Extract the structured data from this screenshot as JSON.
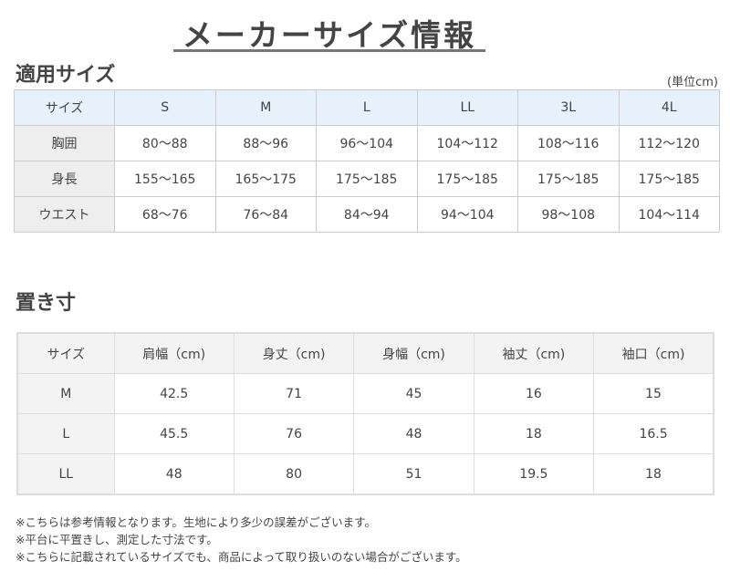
{
  "title": "メーカーサイズ情報",
  "size_section": {
    "heading": "適用サイズ",
    "unit": "(単位cm)",
    "header": [
      "サイズ",
      "S",
      "M",
      "L",
      "LL",
      "3L",
      "4L"
    ],
    "rows": [
      [
        "胸囲",
        "80〜88",
        "88〜96",
        "96〜104",
        "104〜112",
        "108〜116",
        "112〜120"
      ],
      [
        "身長",
        "155〜165",
        "165〜175",
        "175〜185",
        "175〜185",
        "175〜185",
        "175〜185"
      ],
      [
        "ウエスト",
        "68〜76",
        "76〜84",
        "84〜94",
        "94〜104",
        "98〜108",
        "104〜114"
      ]
    ],
    "colors": {
      "header_bg": "#e6f1fc",
      "row_header_bg": "#eeeeee"
    }
  },
  "measure_section": {
    "heading": "置き寸",
    "header": [
      "サイズ",
      "肩幅（cm)",
      "身丈（cm)",
      "身幅（cm)",
      "袖丈（cm)",
      "袖口（cm)"
    ],
    "rows": [
      [
        "M",
        "42.5",
        "71",
        "45",
        "16",
        "15"
      ],
      [
        "L",
        "45.5",
        "76",
        "48",
        "18",
        "16.5"
      ],
      [
        "LL",
        "48",
        "80",
        "51",
        "19.5",
        "18"
      ]
    ]
  },
  "notes": [
    "※こちらは参考情報となります。生地により多少の誤差がございます。",
    "※平台に平置きし、測定した寸法です。",
    "※こちらに記載されているサイズでも、商品によって取り扱いのない場合がございます。"
  ]
}
